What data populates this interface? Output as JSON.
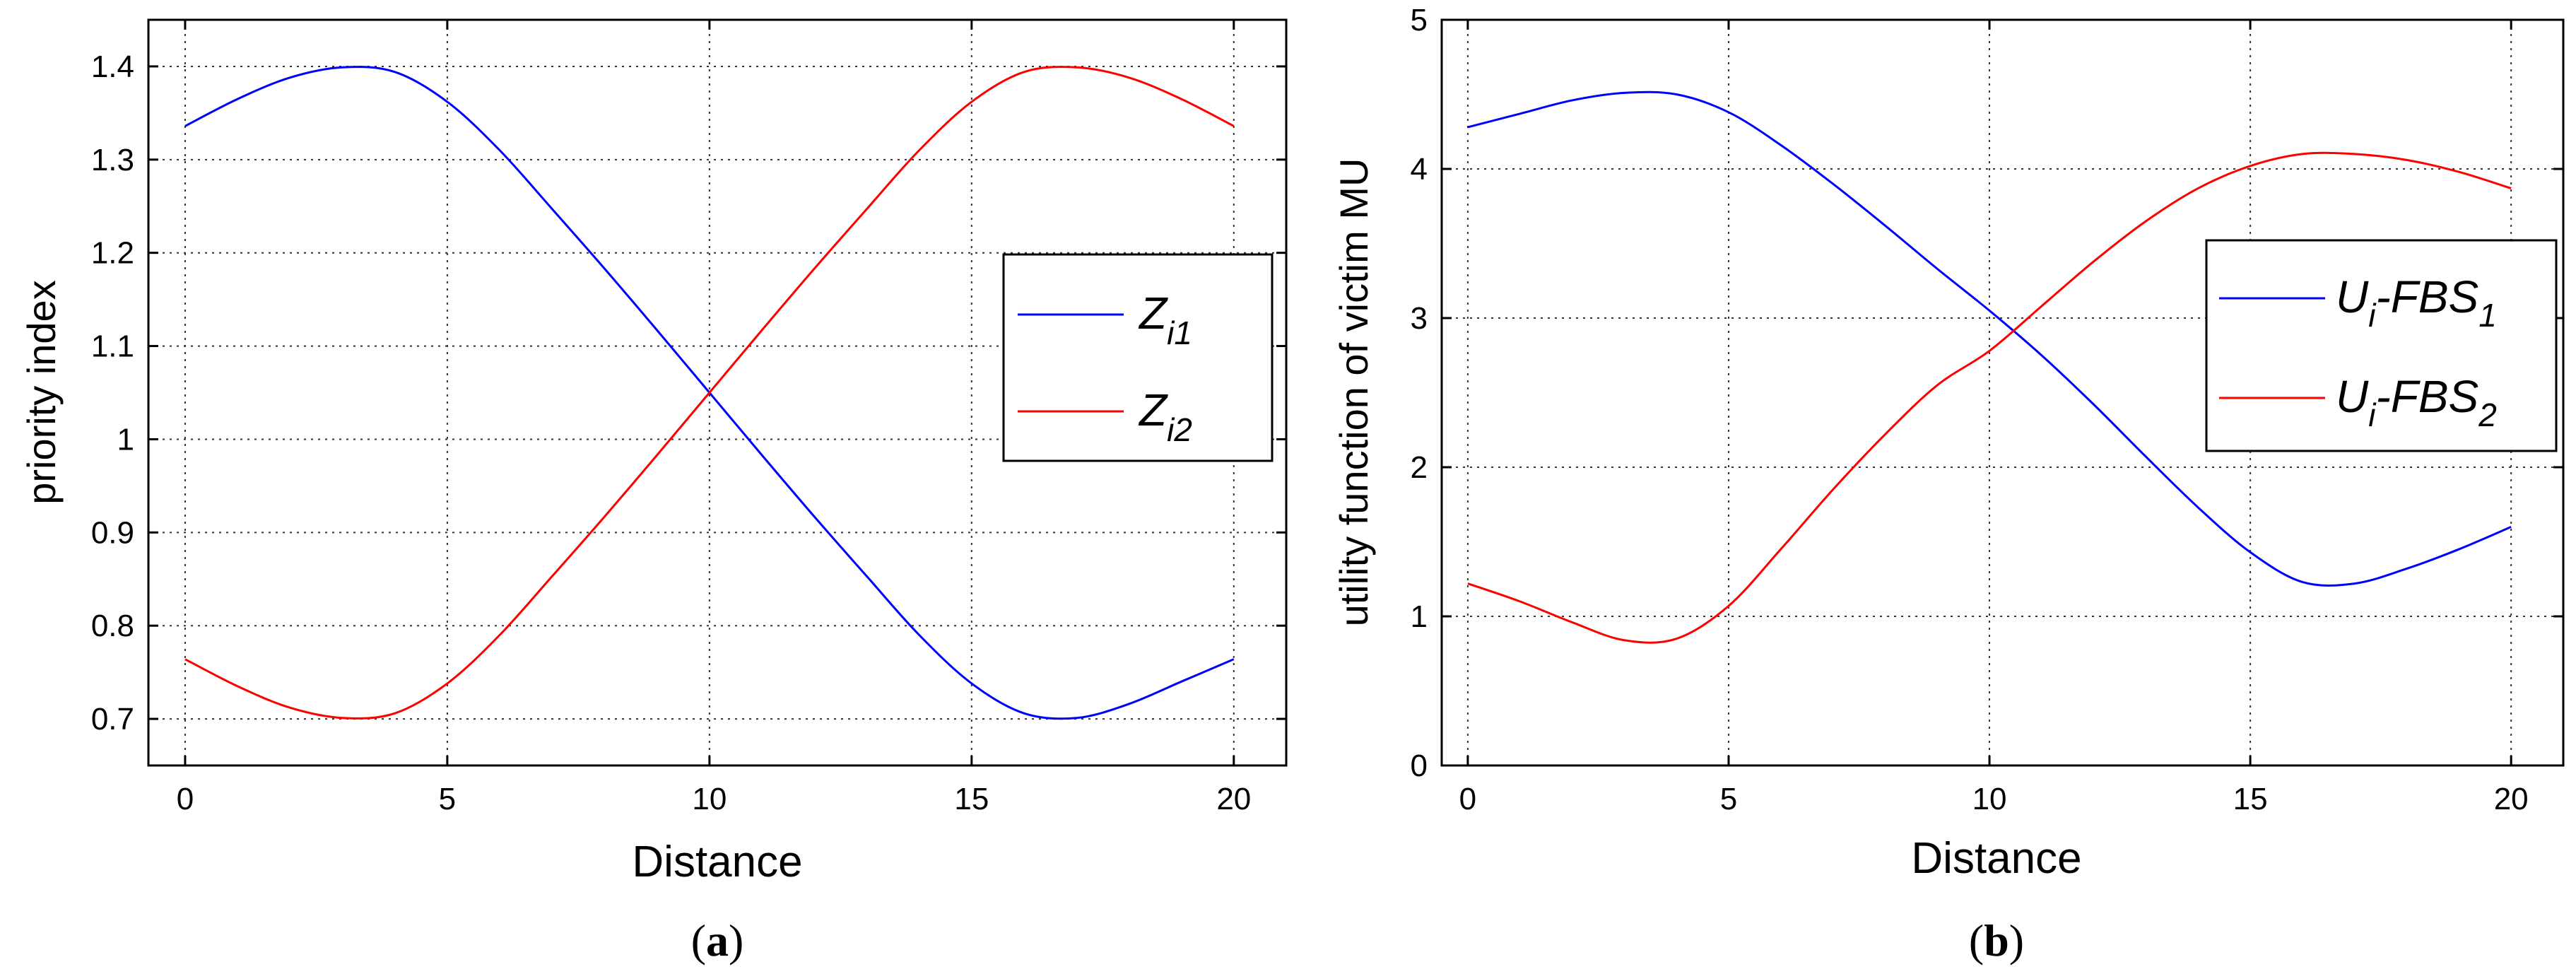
{
  "chart_data": [
    {
      "type": "line",
      "caption_letter": "a",
      "xlabel": "Distance",
      "ylabel": "priority index",
      "xlim": [
        -0.7,
        21
      ],
      "ylim": [
        0.65,
        1.45
      ],
      "xticks": [
        "0",
        "5",
        "10",
        "15",
        "20"
      ],
      "yticks": [
        "0.7",
        "0.8",
        "0.9",
        "1",
        "1.1",
        "1.2",
        "1.3",
        "1.4"
      ],
      "grid": true,
      "legend_position": "center-right",
      "x": [
        0,
        1,
        2,
        3,
        4,
        5,
        6,
        7,
        8,
        9,
        10,
        11,
        12,
        13,
        14,
        15,
        16,
        17,
        18,
        19,
        20
      ],
      "series": [
        {
          "name_main": "Z",
          "name_sub": "i1",
          "color": "#0000ff",
          "values": [
            1.336,
            1.365,
            1.388,
            1.399,
            1.394,
            1.362,
            1.31,
            1.247,
            1.183,
            1.117,
            1.05,
            0.983,
            0.917,
            0.853,
            0.79,
            0.738,
            0.706,
            0.701,
            0.716,
            0.74,
            0.764
          ]
        },
        {
          "name_main": "Z",
          "name_sub": "i2",
          "color": "#ff0000",
          "values": [
            0.764,
            0.735,
            0.712,
            0.701,
            0.706,
            0.738,
            0.79,
            0.853,
            0.917,
            0.983,
            1.05,
            1.117,
            1.183,
            1.247,
            1.31,
            1.362,
            1.394,
            1.399,
            1.388,
            1.365,
            1.336
          ]
        }
      ]
    },
    {
      "type": "line",
      "caption_letter": "b",
      "xlabel": "Distance",
      "ylabel": "utility function of victim MU",
      "xlim": [
        -0.5,
        21
      ],
      "ylim": [
        0,
        5
      ],
      "xticks": [
        "0",
        "5",
        "10",
        "15",
        "20"
      ],
      "yticks": [
        "0",
        "1",
        "2",
        "3",
        "4",
        "5"
      ],
      "grid": true,
      "legend_position": "center-right",
      "x": [
        0,
        1,
        2,
        3,
        4,
        5,
        6,
        7,
        8,
        9,
        10,
        11,
        12,
        13,
        14,
        15,
        16,
        17,
        18,
        19,
        20
      ],
      "series": [
        {
          "name_main": "U",
          "name_sub1": "i",
          "name_mid": "-FBS",
          "name_sub2": "1",
          "color": "#0000ff",
          "values": [
            4.28,
            4.37,
            4.46,
            4.51,
            4.5,
            4.38,
            4.16,
            3.9,
            3.62,
            3.33,
            3.05,
            2.75,
            2.42,
            2.07,
            1.73,
            1.43,
            1.23,
            1.22,
            1.32,
            1.45,
            1.6
          ]
        },
        {
          "name_main": "U",
          "name_sub1": "i",
          "name_mid": "-FBS",
          "name_sub2": "2",
          "color": "#ff0000",
          "values": [
            1.22,
            1.1,
            0.96,
            0.84,
            0.85,
            1.07,
            1.45,
            1.85,
            2.22,
            2.55,
            2.78,
            3.08,
            3.38,
            3.65,
            3.87,
            4.02,
            4.1,
            4.1,
            4.06,
            3.98,
            3.87
          ]
        }
      ]
    }
  ]
}
